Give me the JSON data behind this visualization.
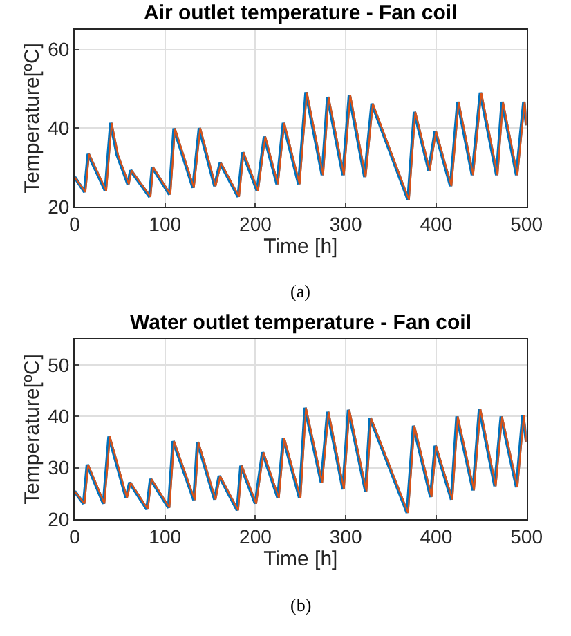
{
  "chart_data": [
    {
      "type": "line",
      "title": "Air outlet temperature - Fan coil",
      "xlabel": "Time [h]",
      "ylabel": "Temperature[ºC]",
      "annotations": [
        "(a)"
      ],
      "xlim": [
        0,
        500
      ],
      "xticks": [
        0,
        100,
        200,
        300,
        400,
        500
      ],
      "ylim": [
        20,
        65
      ],
      "yticks": [
        20,
        40,
        60
      ],
      "grid": true,
      "legend": false,
      "marker": "none",
      "line_style": "solid",
      "series": [
        {
          "color": "#0072bd",
          "x": [
            0,
            11,
            15,
            34,
            40,
            47,
            59,
            62,
            83,
            86,
            105,
            110,
            131,
            138,
            155,
            161,
            181,
            186,
            202,
            210,
            224,
            231,
            248,
            256,
            274,
            280,
            297,
            304,
            321,
            329,
            369,
            376,
            392,
            399,
            416,
            424,
            440,
            449,
            467,
            473,
            489,
            497,
            500
          ],
          "values": [
            27.5,
            23.7,
            33.4,
            24,
            41.3,
            33.2,
            25.7,
            29.2,
            22.5,
            30,
            23.1,
            39.9,
            24.8,
            40,
            25.2,
            31.1,
            22.5,
            33.8,
            24,
            37.8,
            25.7,
            41.3,
            25.7,
            49.1,
            28,
            47.9,
            28,
            48.4,
            27.5,
            46.2,
            21.7,
            44.1,
            29.2,
            39.2,
            25.2,
            46.7,
            28,
            49,
            28,
            46.7,
            28,
            46.7,
            40.7
          ]
        },
        {
          "color": "#d95319",
          "x": [
            0,
            12,
            16,
            35,
            41,
            48,
            60,
            63,
            84,
            87,
            106,
            111,
            132,
            139,
            156,
            162,
            182,
            187,
            203,
            211,
            225,
            232,
            249,
            257,
            275,
            281,
            298,
            305,
            322,
            330,
            370,
            377,
            393,
            400,
            417,
            425,
            441,
            450,
            468,
            474,
            490,
            498,
            500
          ],
          "values": [
            27.5,
            23.7,
            33.4,
            24,
            41.3,
            33.2,
            25.7,
            29.2,
            22.5,
            30,
            23.1,
            39.9,
            24.8,
            40,
            25.2,
            31.1,
            22.5,
            33.8,
            24,
            37.8,
            25.7,
            41.3,
            25.7,
            49.1,
            28,
            47.9,
            28,
            48.4,
            27.5,
            46.2,
            21.7,
            44.1,
            29.2,
            39.2,
            25.2,
            46.7,
            28,
            49,
            28,
            46.7,
            28,
            46.7,
            40.7
          ]
        }
      ]
    },
    {
      "type": "line",
      "title": "Water outlet temperature - Fan coil",
      "xlabel": "Time [h]",
      "ylabel": "Temperature[ºC]",
      "annotations": [
        "(b)"
      ],
      "xlim": [
        0,
        500
      ],
      "xticks": [
        0,
        100,
        200,
        300,
        400,
        500
      ],
      "ylim": [
        20,
        55
      ],
      "yticks": [
        20,
        30,
        40,
        50
      ],
      "grid": true,
      "legend": false,
      "marker": "none",
      "line_style": "solid",
      "series": [
        {
          "color": "#0072bd",
          "x": [
            0,
            10,
            14,
            32,
            38,
            57,
            61,
            80,
            84,
            104,
            109,
            132,
            136,
            155,
            160,
            180,
            184,
            200,
            208,
            225,
            231,
            249,
            255,
            273,
            280,
            297,
            303,
            322,
            327,
            368,
            375,
            394,
            399,
            417,
            423,
            441,
            448,
            465,
            472,
            489,
            496,
            500
          ],
          "values": [
            25.4,
            23,
            30.6,
            23,
            36.1,
            24.1,
            27.1,
            21.9,
            27.8,
            22.2,
            35.2,
            23.7,
            35,
            23.8,
            28.4,
            21.7,
            30.4,
            23,
            33,
            24.1,
            35.8,
            24.1,
            41.7,
            27.1,
            40.9,
            25.8,
            41.3,
            25.4,
            39.7,
            21.2,
            38.2,
            24.3,
            34.3,
            23.8,
            40,
            25.6,
            41.5,
            26.4,
            40,
            26.2,
            40.2,
            35
          ]
        },
        {
          "color": "#d95319",
          "x": [
            0,
            11,
            15,
            33,
            39,
            58,
            62,
            81,
            85,
            105,
            110,
            133,
            137,
            156,
            161,
            181,
            185,
            201,
            209,
            226,
            232,
            250,
            256,
            274,
            281,
            298,
            304,
            323,
            328,
            369,
            376,
            395,
            400,
            418,
            424,
            442,
            449,
            466,
            473,
            490,
            497,
            500
          ],
          "values": [
            25.4,
            23,
            30.6,
            23,
            36.1,
            24.1,
            27.1,
            21.9,
            27.8,
            22.2,
            35.2,
            23.7,
            35,
            23.8,
            28.4,
            21.7,
            30.4,
            23,
            33,
            24.1,
            35.8,
            24.1,
            41.7,
            27.1,
            40.9,
            25.8,
            41.3,
            25.4,
            39.7,
            21.2,
            38.2,
            24.3,
            34.3,
            23.8,
            40,
            25.6,
            41.5,
            26.4,
            40,
            26.2,
            40.2,
            35
          ]
        }
      ]
    }
  ]
}
